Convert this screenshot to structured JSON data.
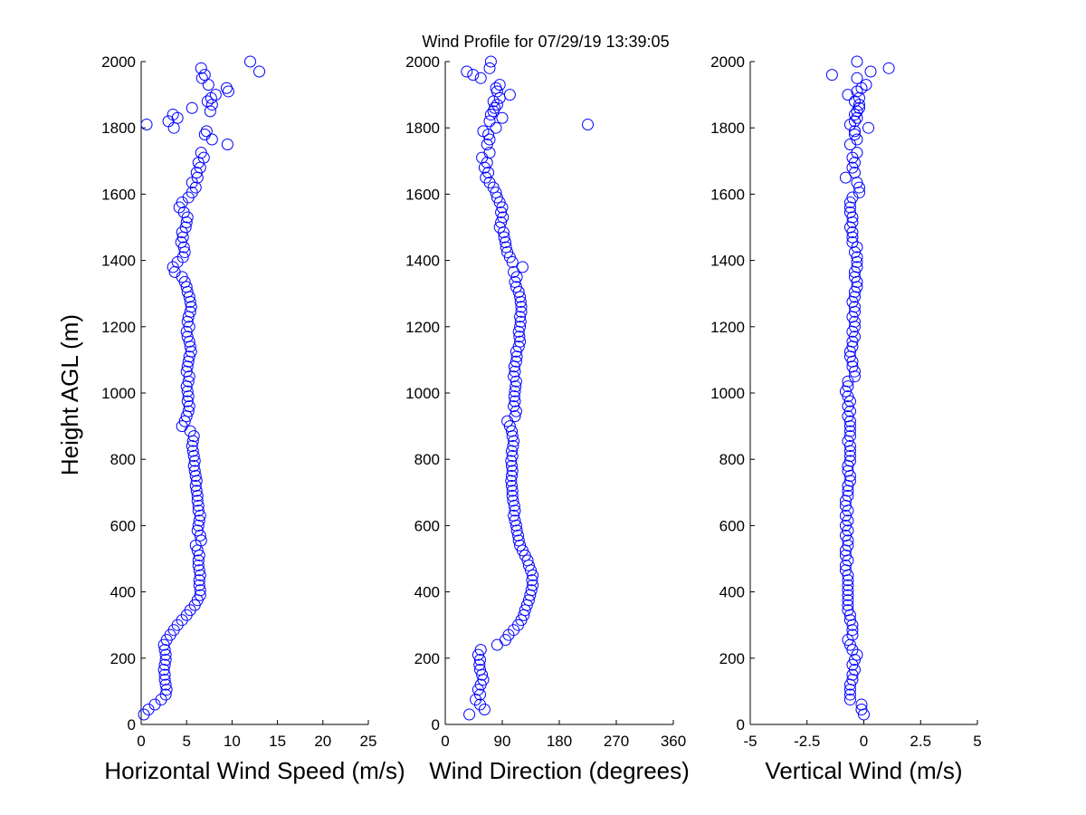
{
  "chart_data": {
    "type": "scatter",
    "title": "Wind Profile for  07/29/19 13:39:05",
    "ylabel": "Height AGL (m)",
    "marker_color": "#0000ff",
    "ylim": [
      0,
      2000
    ],
    "yticks": [
      0,
      200,
      400,
      600,
      800,
      1000,
      1200,
      1400,
      1600,
      1800,
      2000
    ],
    "height": [
      30,
      45,
      60,
      75,
      90,
      105,
      120,
      135,
      150,
      165,
      180,
      195,
      210,
      225,
      240,
      255,
      270,
      285,
      300,
      315,
      330,
      345,
      360,
      375,
      390,
      405,
      420,
      435,
      450,
      465,
      480,
      495,
      510,
      525,
      540,
      555,
      570,
      585,
      600,
      615,
      630,
      645,
      660,
      675,
      690,
      705,
      720,
      735,
      750,
      765,
      780,
      795,
      810,
      825,
      840,
      855,
      870,
      885,
      900,
      915,
      930,
      945,
      960,
      975,
      990,
      1005,
      1020,
      1035,
      1050,
      1065,
      1080,
      1095,
      1110,
      1125,
      1140,
      1155,
      1170,
      1185,
      1200,
      1215,
      1230,
      1245,
      1260,
      1275,
      1290,
      1305,
      1320,
      1335,
      1350,
      1365,
      1380,
      1395,
      1410,
      1425,
      1440,
      1455,
      1470,
      1485,
      1500,
      1515,
      1530,
      1545,
      1560,
      1575,
      1590,
      1605,
      1620,
      1635,
      1650,
      1665,
      1680,
      1695,
      1710,
      1725,
      1750,
      1765,
      1780,
      1790,
      1800,
      1810,
      1820,
      1830,
      1840,
      1850,
      1860,
      1870,
      1880,
      1890,
      1900,
      1910,
      1920,
      1930,
      1950,
      1960,
      1970,
      1980,
      2000
    ],
    "panels": [
      {
        "xlabel": "Horizontal Wind Speed (m/s)",
        "xlim": [
          0,
          25
        ],
        "xticks": [
          0,
          5,
          10,
          15,
          20,
          25
        ],
        "xtick_labels": [
          "0",
          "5",
          "10",
          "15",
          "20",
          "25"
        ],
        "values": [
          0.3,
          0.8,
          1.5,
          2.2,
          2.7,
          2.8,
          2.7,
          2.6,
          2.6,
          2.5,
          2.6,
          2.7,
          2.7,
          2.6,
          2.5,
          2.8,
          3.2,
          3.6,
          4.0,
          4.5,
          5.0,
          5.4,
          5.9,
          6.2,
          6.5,
          6.5,
          6.4,
          6.4,
          6.5,
          6.4,
          6.3,
          6.3,
          6.4,
          6.2,
          6.0,
          6.6,
          6.5,
          6.2,
          6.3,
          6.4,
          6.5,
          6.3,
          6.3,
          6.2,
          6.2,
          6.1,
          6.0,
          6.1,
          6.0,
          5.9,
          5.8,
          5.9,
          5.8,
          5.7,
          5.6,
          5.7,
          5.8,
          5.4,
          4.5,
          4.8,
          5.0,
          5.2,
          5.3,
          5.1,
          5.2,
          5.1,
          5.0,
          5.2,
          5.3,
          5.0,
          5.1,
          5.2,
          5.3,
          5.5,
          5.4,
          5.3,
          5.1,
          5.0,
          5.3,
          5.1,
          5.2,
          5.4,
          5.5,
          5.4,
          5.3,
          5.1,
          5.0,
          4.8,
          4.5,
          3.7,
          3.5,
          4.0,
          4.6,
          4.8,
          4.7,
          4.4,
          4.6,
          4.5,
          4.9,
          5.0,
          5.1,
          4.7,
          4.2,
          4.5,
          5.2,
          5.6,
          6.0,
          5.6,
          6.2,
          6.1,
          6.5,
          6.3,
          6.9,
          6.6,
          9.5,
          7.8,
          7.0,
          7.2,
          3.6,
          0.6,
          3.0,
          4.0,
          3.5,
          7.6,
          5.6,
          7.8,
          7.3,
          7.7,
          8.2,
          9.6,
          9.4,
          7.4,
          6.7,
          7.0,
          13.0,
          6.6,
          12.0
        ]
      },
      {
        "xlabel": "Wind Direction (degrees)",
        "xlim": [
          0,
          360
        ],
        "xticks": [
          0,
          90,
          180,
          270,
          360
        ],
        "xtick_labels": [
          "0",
          "90",
          "180",
          "270",
          "360"
        ],
        "values": [
          38,
          62,
          55,
          48,
          55,
          52,
          56,
          60,
          58,
          55,
          54,
          55,
          52,
          56,
          82,
          95,
          100,
          108,
          115,
          120,
          124,
          126,
          129,
          132,
          134,
          136,
          138,
          137,
          138,
          135,
          132,
          130,
          126,
          122,
          118,
          116,
          115,
          113,
          112,
          110,
          108,
          110,
          109,
          107,
          106,
          106,
          105,
          104,
          105,
          106,
          105,
          104,
          106,
          105,
          107,
          108,
          106,
          105,
          102,
          98,
          110,
          112,
          108,
          110,
          109,
          110,
          111,
          112,
          108,
          110,
          109,
          112,
          113,
          112,
          116,
          118,
          117,
          116,
          118,
          119,
          118,
          120,
          120,
          119,
          118,
          116,
          112,
          110,
          113,
          108,
          122,
          106,
          102,
          98,
          96,
          95,
          93,
          92,
          86,
          88,
          91,
          88,
          90,
          86,
          82,
          80,
          76,
          70,
          64,
          68,
          62,
          66,
          58,
          70,
          66,
          70,
          68,
          60,
          80,
          225,
          70,
          90,
          72,
          76,
          78,
          82,
          76,
          86,
          102,
          82,
          80,
          86,
          56,
          44,
          34,
          70,
          72
        ]
      },
      {
        "xlabel": "Vertical Wind (m/s)",
        "xlim": [
          -5,
          5
        ],
        "xticks": [
          -5,
          -2.5,
          0,
          2.5,
          5
        ],
        "xtick_labels": [
          "-5",
          "-2.5",
          "0",
          "2.5",
          "5"
        ],
        "values": [
          0.0,
          -0.1,
          -0.1,
          -0.6,
          -0.6,
          -0.6,
          -0.6,
          -0.5,
          -0.5,
          -0.4,
          -0.5,
          -0.4,
          -0.3,
          -0.5,
          -0.6,
          -0.7,
          -0.5,
          -0.5,
          -0.5,
          -0.6,
          -0.6,
          -0.7,
          -0.7,
          -0.7,
          -0.7,
          -0.7,
          -0.7,
          -0.7,
          -0.7,
          -0.8,
          -0.8,
          -0.7,
          -0.8,
          -0.8,
          -0.7,
          -0.7,
          -0.8,
          -0.7,
          -0.8,
          -0.7,
          -0.8,
          -0.7,
          -0.8,
          -0.8,
          -0.7,
          -0.7,
          -0.7,
          -0.6,
          -0.6,
          -0.7,
          -0.7,
          -0.6,
          -0.6,
          -0.6,
          -0.6,
          -0.7,
          -0.6,
          -0.6,
          -0.6,
          -0.6,
          -0.7,
          -0.6,
          -0.7,
          -0.6,
          -0.7,
          -0.8,
          -0.7,
          -0.7,
          -0.4,
          -0.4,
          -0.5,
          -0.5,
          -0.6,
          -0.6,
          -0.5,
          -0.5,
          -0.4,
          -0.5,
          -0.4,
          -0.4,
          -0.5,
          -0.4,
          -0.4,
          -0.5,
          -0.4,
          -0.4,
          -0.3,
          -0.3,
          -0.4,
          -0.4,
          -0.3,
          -0.3,
          -0.3,
          -0.4,
          -0.3,
          -0.5,
          -0.5,
          -0.5,
          -0.6,
          -0.5,
          -0.5,
          -0.6,
          -0.6,
          -0.6,
          -0.5,
          -0.2,
          -0.2,
          -0.3,
          -0.8,
          -0.4,
          -0.5,
          -0.4,
          -0.5,
          -0.3,
          -0.6,
          -0.3,
          -0.4,
          -0.4,
          0.2,
          -0.6,
          -0.4,
          -0.3,
          -0.4,
          -0.3,
          -0.2,
          -0.2,
          -0.4,
          -0.2,
          -0.7,
          -0.3,
          -0.1,
          0.1,
          -0.3,
          -1.4,
          0.3,
          1.1,
          -0.3
        ]
      }
    ]
  }
}
